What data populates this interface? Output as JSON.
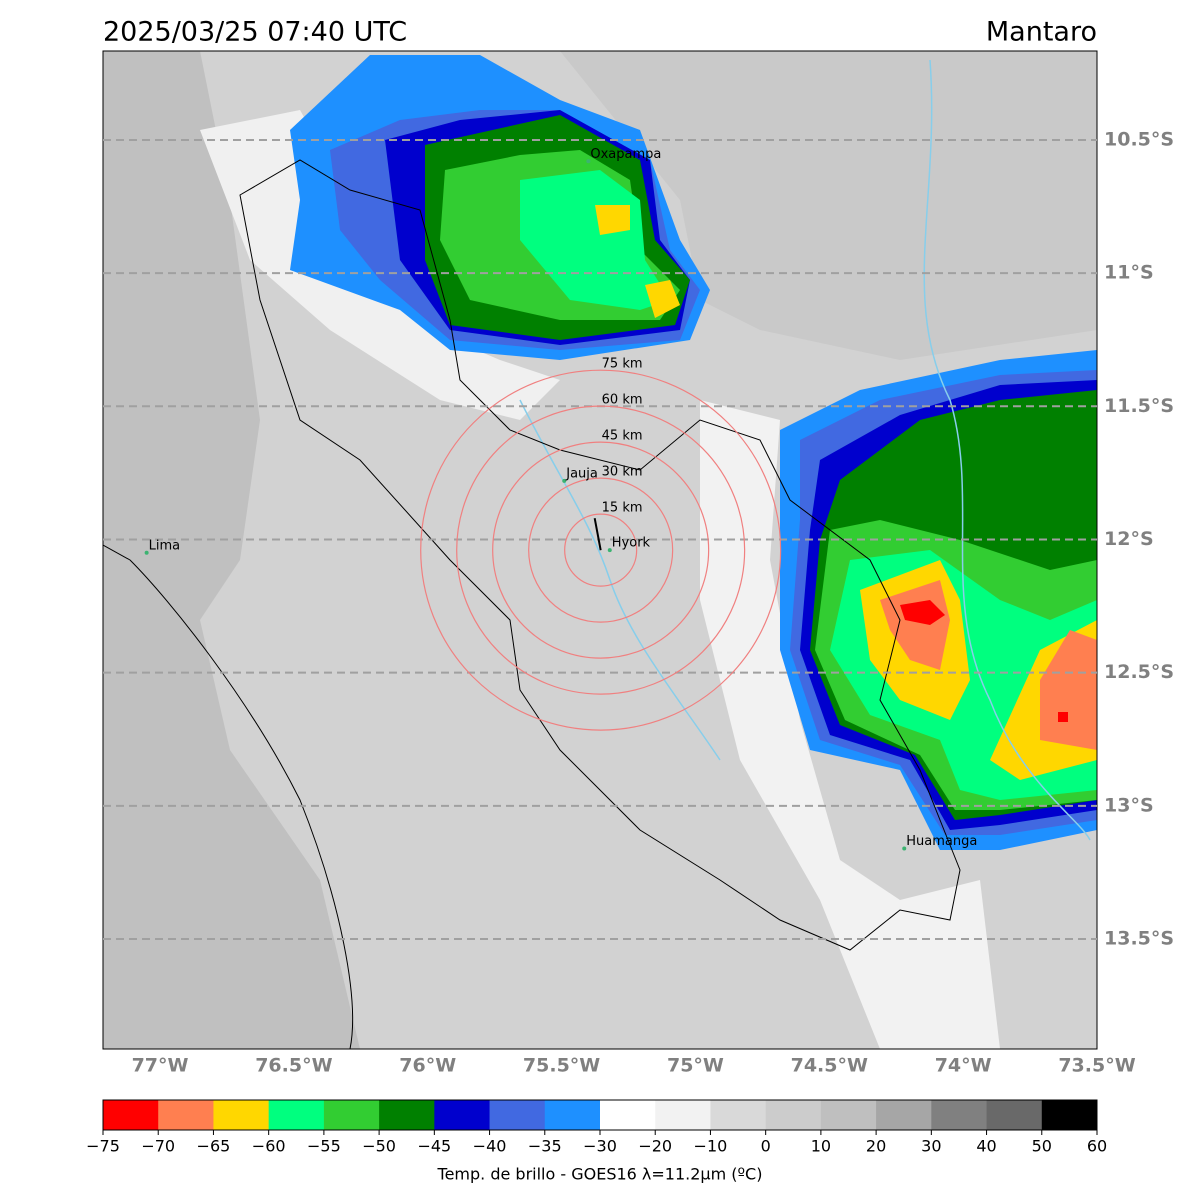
{
  "title": "2025/03/25 07:40 UTC",
  "region": "Mantaro",
  "map": {
    "lon_range": [
      -77.213,
      -73.5
    ],
    "lat_range": [
      -10.166,
      -13.913
    ],
    "lat_ticks": [
      {
        "value": -10.5,
        "label": "10.5°S"
      },
      {
        "value": -11,
        "label": "11°S"
      },
      {
        "value": -11.5,
        "label": "11.5°S"
      },
      {
        "value": -12,
        "label": "12°S"
      },
      {
        "value": -12.5,
        "label": "12.5°S"
      },
      {
        "value": -13,
        "label": "13°S"
      },
      {
        "value": -13.5,
        "label": "13.5°S"
      }
    ],
    "lon_ticks": [
      {
        "value": -77,
        "label": "77°W"
      },
      {
        "value": -76.5,
        "label": "76.5°W"
      },
      {
        "value": -76,
        "label": "76°W"
      },
      {
        "value": -75.5,
        "label": "75.5°W"
      },
      {
        "value": -75,
        "label": "75°W"
      },
      {
        "value": -74.5,
        "label": "74.5°W"
      },
      {
        "value": -74,
        "label": "74°W"
      },
      {
        "value": -73.5,
        "label": "73.5°W"
      }
    ],
    "grid": true,
    "places": [
      {
        "name": "Oxapampa",
        "lon": -75.4,
        "lat": -10.58
      },
      {
        "name": "Jauja",
        "lon": -75.49,
        "lat": -11.78
      },
      {
        "name": "Lima",
        "lon": -77.05,
        "lat": -12.05
      },
      {
        "name": "Hyork",
        "lon": -75.32,
        "lat": -12.04
      },
      {
        "name": "Huamanga",
        "lon": -74.22,
        "lat": -13.16
      }
    ],
    "radar": {
      "lon": -75.354,
      "lat": -12.04,
      "rings": [
        {
          "value": 15,
          "label": "15 km"
        },
        {
          "value": 30,
          "label": "30 km"
        },
        {
          "value": 45,
          "label": "45 km"
        },
        {
          "value": 60,
          "label": "60 km"
        },
        {
          "value": 75,
          "label": "75 km"
        }
      ]
    }
  },
  "colorbar": {
    "label": "Temp. de brillo - GOES16 λ=11.2μm (ºC)",
    "ticks": [
      {
        "value": -75,
        "label": "−75"
      },
      {
        "value": -70,
        "label": "−70"
      },
      {
        "value": -65,
        "label": "−65"
      },
      {
        "value": -60,
        "label": "−60"
      },
      {
        "value": -55,
        "label": "−55"
      },
      {
        "value": -50,
        "label": "−50"
      },
      {
        "value": -45,
        "label": "−45"
      },
      {
        "value": -40,
        "label": "−40"
      },
      {
        "value": -35,
        "label": "−35"
      },
      {
        "value": -30,
        "label": "−30"
      },
      {
        "value": -20,
        "label": "−20"
      },
      {
        "value": -10,
        "label": "−10"
      },
      0,
      10,
      20,
      30,
      40,
      50,
      60
    ],
    "colors": [
      "#ff0000",
      "#ff7f50",
      "#ffd700",
      "#00ff7f",
      "#32cd32",
      "#008000",
      "#0000cd",
      "#4169e1",
      "#1e90ff",
      "#ffffff",
      "#f2f2f2",
      "#d9d9d9",
      "#cccccc",
      "#bfbfbf",
      "#a6a6a6",
      "#808080",
      "#696969",
      "#000000"
    ]
  }
}
